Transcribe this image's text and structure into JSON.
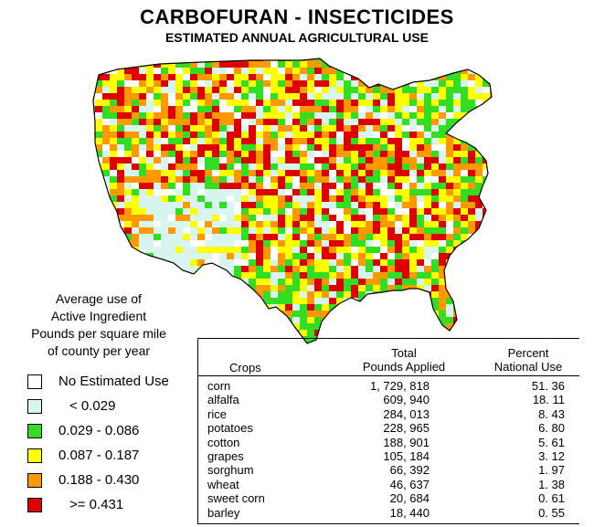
{
  "title": "CARBOFURAN - INSECTICIDES",
  "subtitle": "ESTIMATED ANNUAL AGRICULTURAL USE",
  "legend": {
    "title_lines": [
      "Average use of",
      "Active Ingredient",
      "Pounds per square mile",
      "of county per year"
    ],
    "items": [
      {
        "label": "No Estimated Use",
        "color": "#ffffff"
      },
      {
        "label": "< 0.029",
        "color": "#d9f5f0"
      },
      {
        "label": "0.029 - 0.086",
        "color": "#33dd22"
      },
      {
        "label": "0.087 - 0.187",
        "color": "#ffff00"
      },
      {
        "label": "0.188 - 0.430",
        "color": "#ff9900"
      },
      {
        "label": ">= 0.431",
        "color": "#dd0000"
      }
    ]
  },
  "table": {
    "headers": {
      "crops": "Crops",
      "total_line1": "Total",
      "total_line2": "Pounds Applied",
      "percent_line1": "Percent",
      "percent_line2": "National Use"
    },
    "rows": [
      {
        "crop": "corn",
        "pounds": "1, 729, 818",
        "percent": "51. 36"
      },
      {
        "crop": "alfalfa",
        "pounds": "609, 940",
        "percent": "18. 11"
      },
      {
        "crop": "rice",
        "pounds": "284, 013",
        "percent": "8. 43"
      },
      {
        "crop": "potatoes",
        "pounds": "228, 965",
        "percent": "6. 80"
      },
      {
        "crop": "cotton",
        "pounds": "188, 901",
        "percent": "5. 61"
      },
      {
        "crop": "grapes",
        "pounds": "105, 184",
        "percent": "3. 12"
      },
      {
        "crop": "sorghum",
        "pounds": "66, 392",
        "percent": "1. 97"
      },
      {
        "crop": "wheat",
        "pounds": "46, 637",
        "percent": "1. 38"
      },
      {
        "crop": "sweet corn",
        "pounds": "20, 684",
        "percent": "0. 61"
      },
      {
        "crop": "barley",
        "pounds": "18, 440",
        "percent": "0. 55"
      }
    ]
  }
}
